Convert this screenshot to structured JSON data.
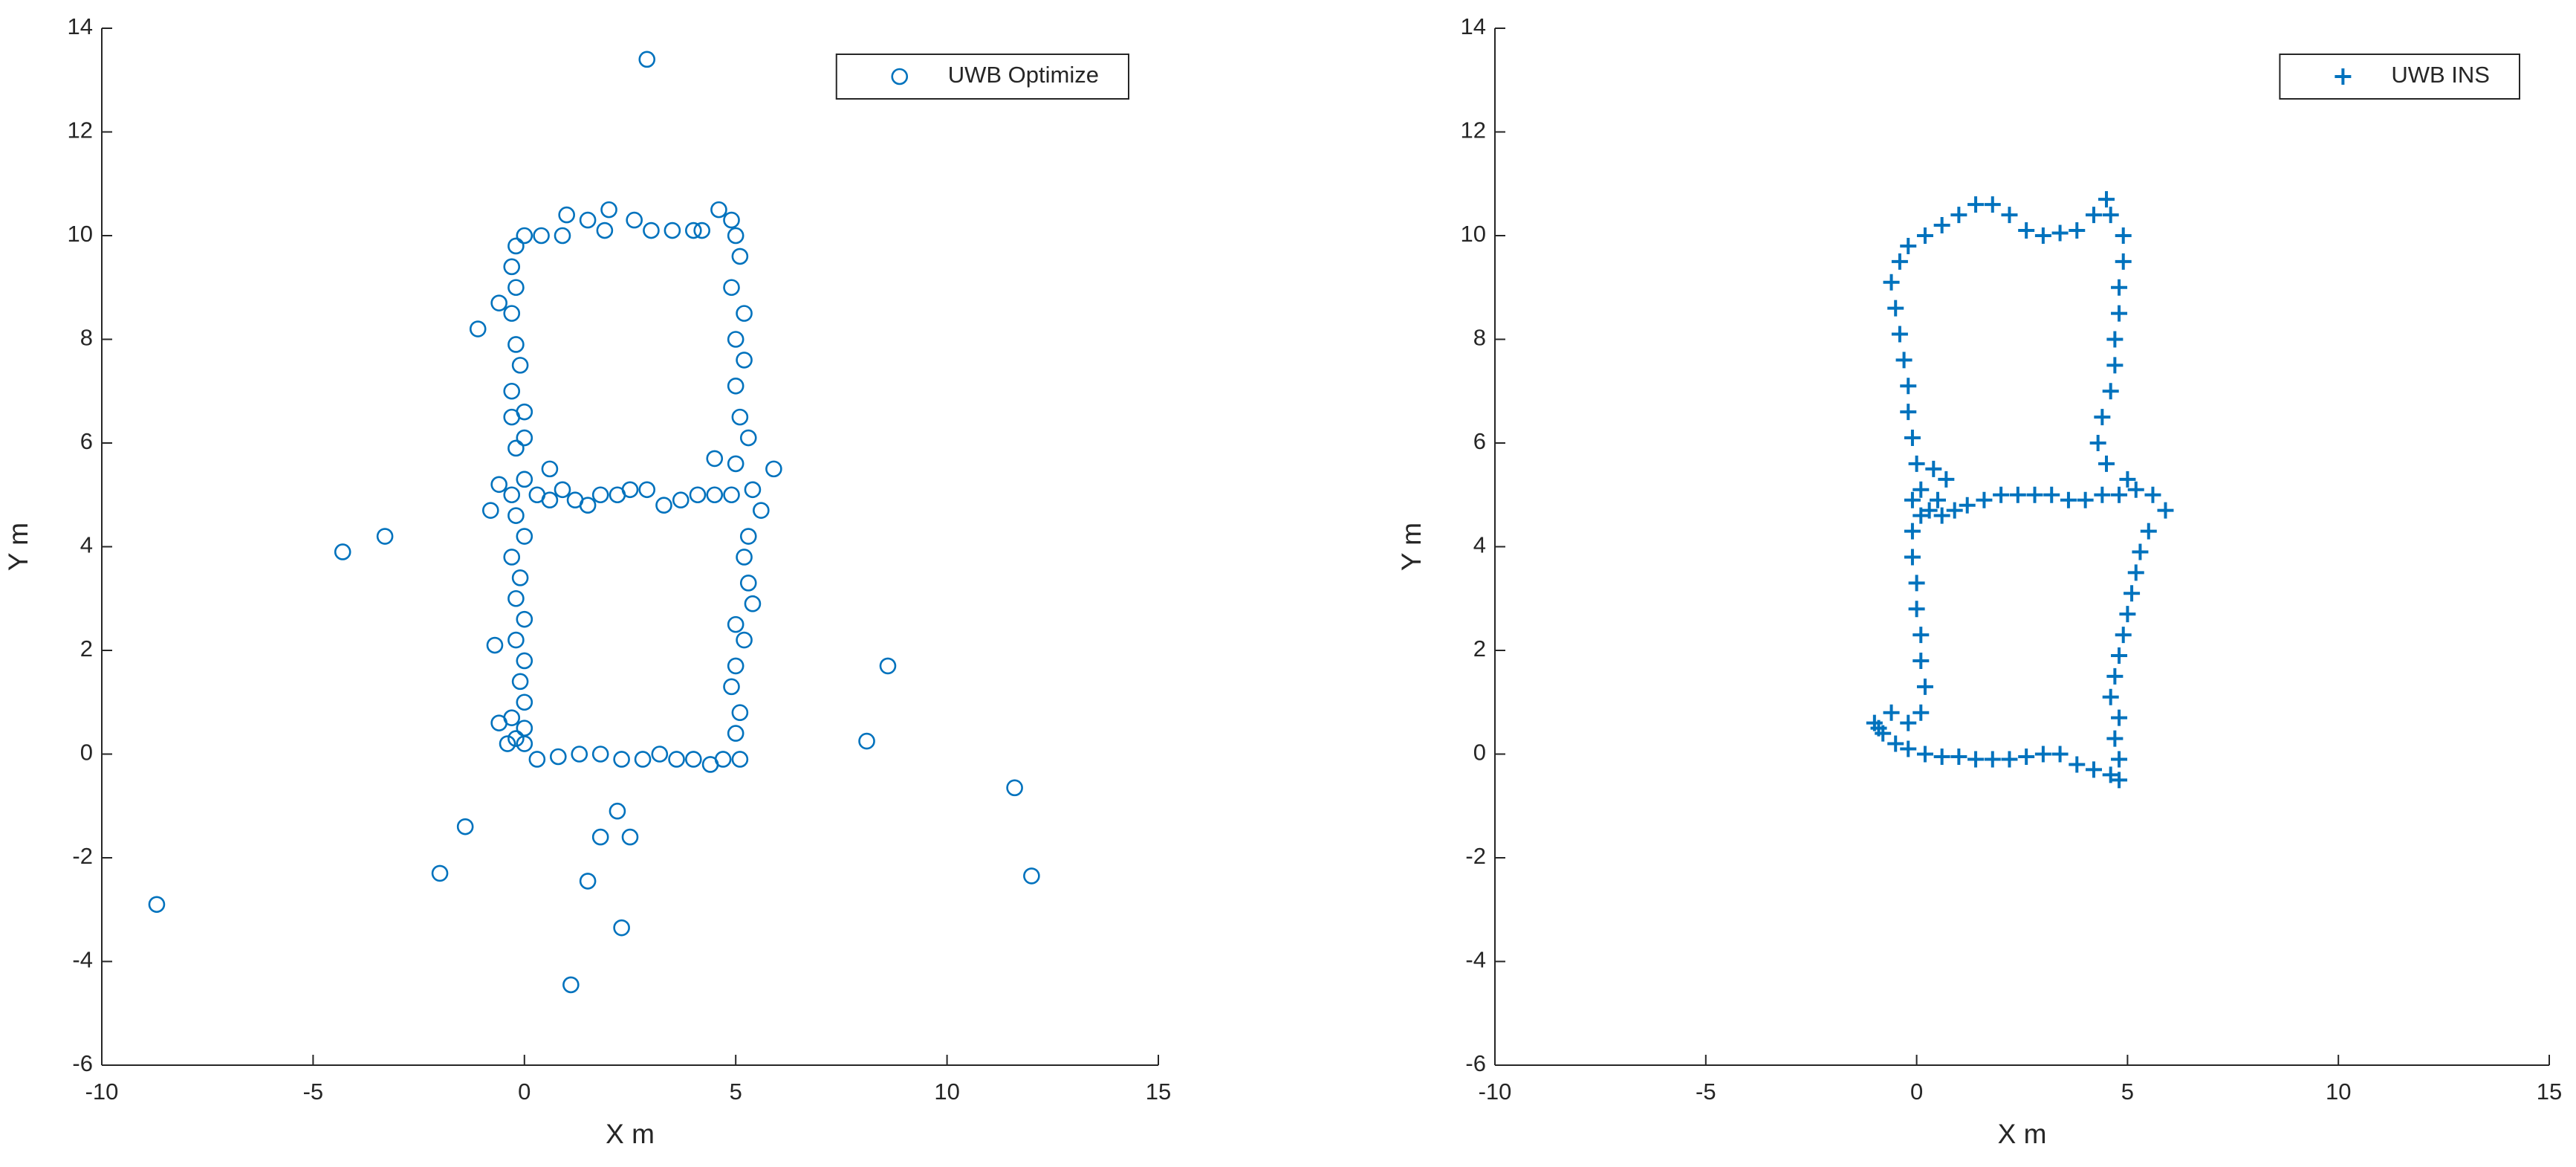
{
  "chart_data": [
    {
      "type": "scatter",
      "xlabel": "X m",
      "ylabel": "Y m",
      "xlim": [
        -10,
        15
      ],
      "xticks": [
        -10,
        -5,
        0,
        5,
        10,
        15
      ],
      "ylim": [
        -6,
        14
      ],
      "yticks": [
        -6,
        -4,
        -2,
        0,
        2,
        4,
        6,
        8,
        10,
        12,
        14
      ],
      "legend": "upper right",
      "series": [
        {
          "name": "UWB Optimize",
          "color": "#0072BD",
          "marker": "o",
          "x": [
            -0.2,
            0,
            -0.3,
            0,
            -0.1,
            0,
            -0.2,
            0,
            -0.2,
            -0.1,
            -0.3,
            0,
            -0.2,
            -0.3,
            0,
            -0.2,
            0,
            -0.3,
            0,
            -0.3,
            -0.1,
            -0.2,
            -0.3,
            -0.2,
            -0.3,
            -0.2,
            0,
            0.4,
            0.9,
            1.0,
            1.5,
            1.9,
            2.0,
            2.6,
            3.0,
            3.5,
            4.0,
            4.2,
            4.6,
            4.9,
            5.0,
            5.1,
            4.9,
            5.2,
            5.0,
            5.2,
            5.0,
            5.1,
            5.3,
            5.0,
            5.4,
            5.6,
            5.3,
            5.2,
            5.3,
            5.4,
            5.0,
            5.2,
            5.0,
            4.9,
            5.1,
            5.0,
            5.1,
            4.7,
            4.4,
            4.0,
            3.6,
            3.2,
            2.8,
            2.3,
            1.8,
            1.3,
            0.8,
            0.3,
            0,
            0.3,
            0.6,
            0.9,
            1.2,
            1.5,
            1.8,
            2.2,
            2.5,
            2.9,
            3.3,
            3.7,
            4.1,
            4.5,
            4.9,
            0.6,
            2.9,
            -1.1,
            -4.3,
            -3.3,
            8.6,
            8.1,
            11.6,
            12,
            -8.7,
            -1.4,
            -2,
            1.5,
            1.8,
            2.2,
            2.5,
            2.3,
            1.1,
            -0.6,
            -0.6,
            -0.8,
            -0.7,
            5.9,
            4.5,
            -0.6,
            -0.4
          ],
          "values": [
            0.3,
            0.5,
            0.7,
            1.0,
            1.4,
            1.8,
            2.2,
            2.6,
            3.0,
            3.4,
            3.8,
            4.2,
            4.6,
            5.0,
            5.3,
            5.9,
            6.1,
            6.5,
            6.6,
            7.0,
            7.5,
            7.9,
            8.5,
            9.0,
            9.4,
            9.8,
            10.0,
            10.0,
            10.0,
            10.4,
            10.3,
            10.1,
            10.5,
            10.3,
            10.1,
            10.1,
            10.1,
            10.1,
            10.5,
            10.3,
            10.0,
            9.6,
            9.0,
            8.5,
            8.0,
            7.6,
            7.1,
            6.5,
            6.1,
            5.6,
            5.1,
            4.7,
            4.2,
            3.8,
            3.3,
            2.9,
            2.5,
            2.2,
            1.7,
            1.3,
            0.8,
            0.4,
            -0.1,
            -0.1,
            -0.2,
            -0.1,
            -0.1,
            0,
            -0.1,
            -0.1,
            0,
            0,
            -0.05,
            -0.1,
            0.2,
            5.0,
            4.9,
            5.1,
            4.9,
            4.8,
            5.0,
            5.0,
            5.1,
            5.1,
            4.8,
            4.9,
            5.0,
            5.0,
            5.0,
            5.5,
            13.4,
            8.2,
            3.9,
            4.2,
            1.7,
            0.25,
            -0.65,
            -2.35,
            -2.9,
            -1.4,
            -2.3,
            -2.45,
            -1.6,
            -1.1,
            -1.6,
            -3.35,
            -4.45,
            8.7,
            5.2,
            4.7,
            2.1,
            5.5,
            5.7,
            0.6,
            0.2
          ]
        }
      ]
    },
    {
      "type": "scatter",
      "xlabel": "X m",
      "ylabel": "Y m",
      "xlim": [
        -10,
        15
      ],
      "xticks": [
        -10,
        -5,
        0,
        5,
        10,
        15
      ],
      "ylim": [
        -6,
        14
      ],
      "yticks": [
        -6,
        -4,
        -2,
        0,
        2,
        4,
        6,
        8,
        10,
        12,
        14
      ],
      "legend": "upper right",
      "series": [
        {
          "name": "UWB INS",
          "color": "#0072BD",
          "marker": "+",
          "x": [
            -1,
            -0.8,
            -0.5,
            -0.2,
            0.2,
            0.6,
            1.0,
            1.4,
            1.8,
            2.2,
            2.6,
            3.0,
            3.4,
            3.8,
            4.2,
            4.6,
            4.8,
            4.8,
            4.7,
            4.8,
            4.6,
            4.7,
            4.8,
            4.9,
            5.0,
            5.1,
            5.2,
            5.3,
            5.5,
            5.9,
            5.6,
            5.2,
            4.8,
            4.4,
            4.0,
            3.6,
            3.2,
            2.8,
            2.4,
            2.0,
            1.6,
            1.2,
            0.9,
            0.6,
            0.3,
            0.1,
            0.4,
            0.7,
            0.5,
            0.1,
            5.0,
            4.5,
            4.3,
            4.4,
            4.6,
            4.7,
            4.7,
            4.8,
            4.8,
            4.9,
            4.9,
            4.6,
            4.5,
            4.2,
            3.8,
            3.4,
            3.0,
            2.6,
            2.2,
            1.8,
            1.4,
            1.0,
            0.6,
            0.2,
            -0.2,
            -0.4,
            -0.6,
            -0.5,
            -0.4,
            -0.3,
            -0.2,
            -0.2,
            -0.1,
            0,
            -0.1,
            -0.1,
            -0.1,
            0,
            0,
            0.1,
            0.1,
            0.2,
            0.1,
            -0.2,
            -0.6,
            -0.9
          ],
          "values": [
            0.6,
            0.4,
            0.2,
            0.1,
            0,
            -0.05,
            -0.05,
            -0.1,
            -0.1,
            -0.1,
            -0.05,
            0,
            0,
            -0.2,
            -0.3,
            -0.4,
            -0.5,
            -0.1,
            0.3,
            0.7,
            1.1,
            1.5,
            1.9,
            2.3,
            2.7,
            3.1,
            3.5,
            3.9,
            4.3,
            4.7,
            5.0,
            5.1,
            5.0,
            5.0,
            4.9,
            4.9,
            5.0,
            5.0,
            5.0,
            5.0,
            4.9,
            4.8,
            4.7,
            4.6,
            4.7,
            5.1,
            5.5,
            5.3,
            4.9,
            4.6,
            5.3,
            5.6,
            6.0,
            6.5,
            7.0,
            7.5,
            8.0,
            8.5,
            9.0,
            9.5,
            10.0,
            10.4,
            10.7,
            10.4,
            10.1,
            10.05,
            10.0,
            10.1,
            10.4,
            10.6,
            10.6,
            10.4,
            10.2,
            10.0,
            9.8,
            9.5,
            9.1,
            8.6,
            8.1,
            7.6,
            7.1,
            6.6,
            6.1,
            5.6,
            4.9,
            4.3,
            3.8,
            3.3,
            2.8,
            2.3,
            1.8,
            1.3,
            0.8,
            0.6,
            0.8,
            0.5
          ]
        }
      ]
    }
  ]
}
